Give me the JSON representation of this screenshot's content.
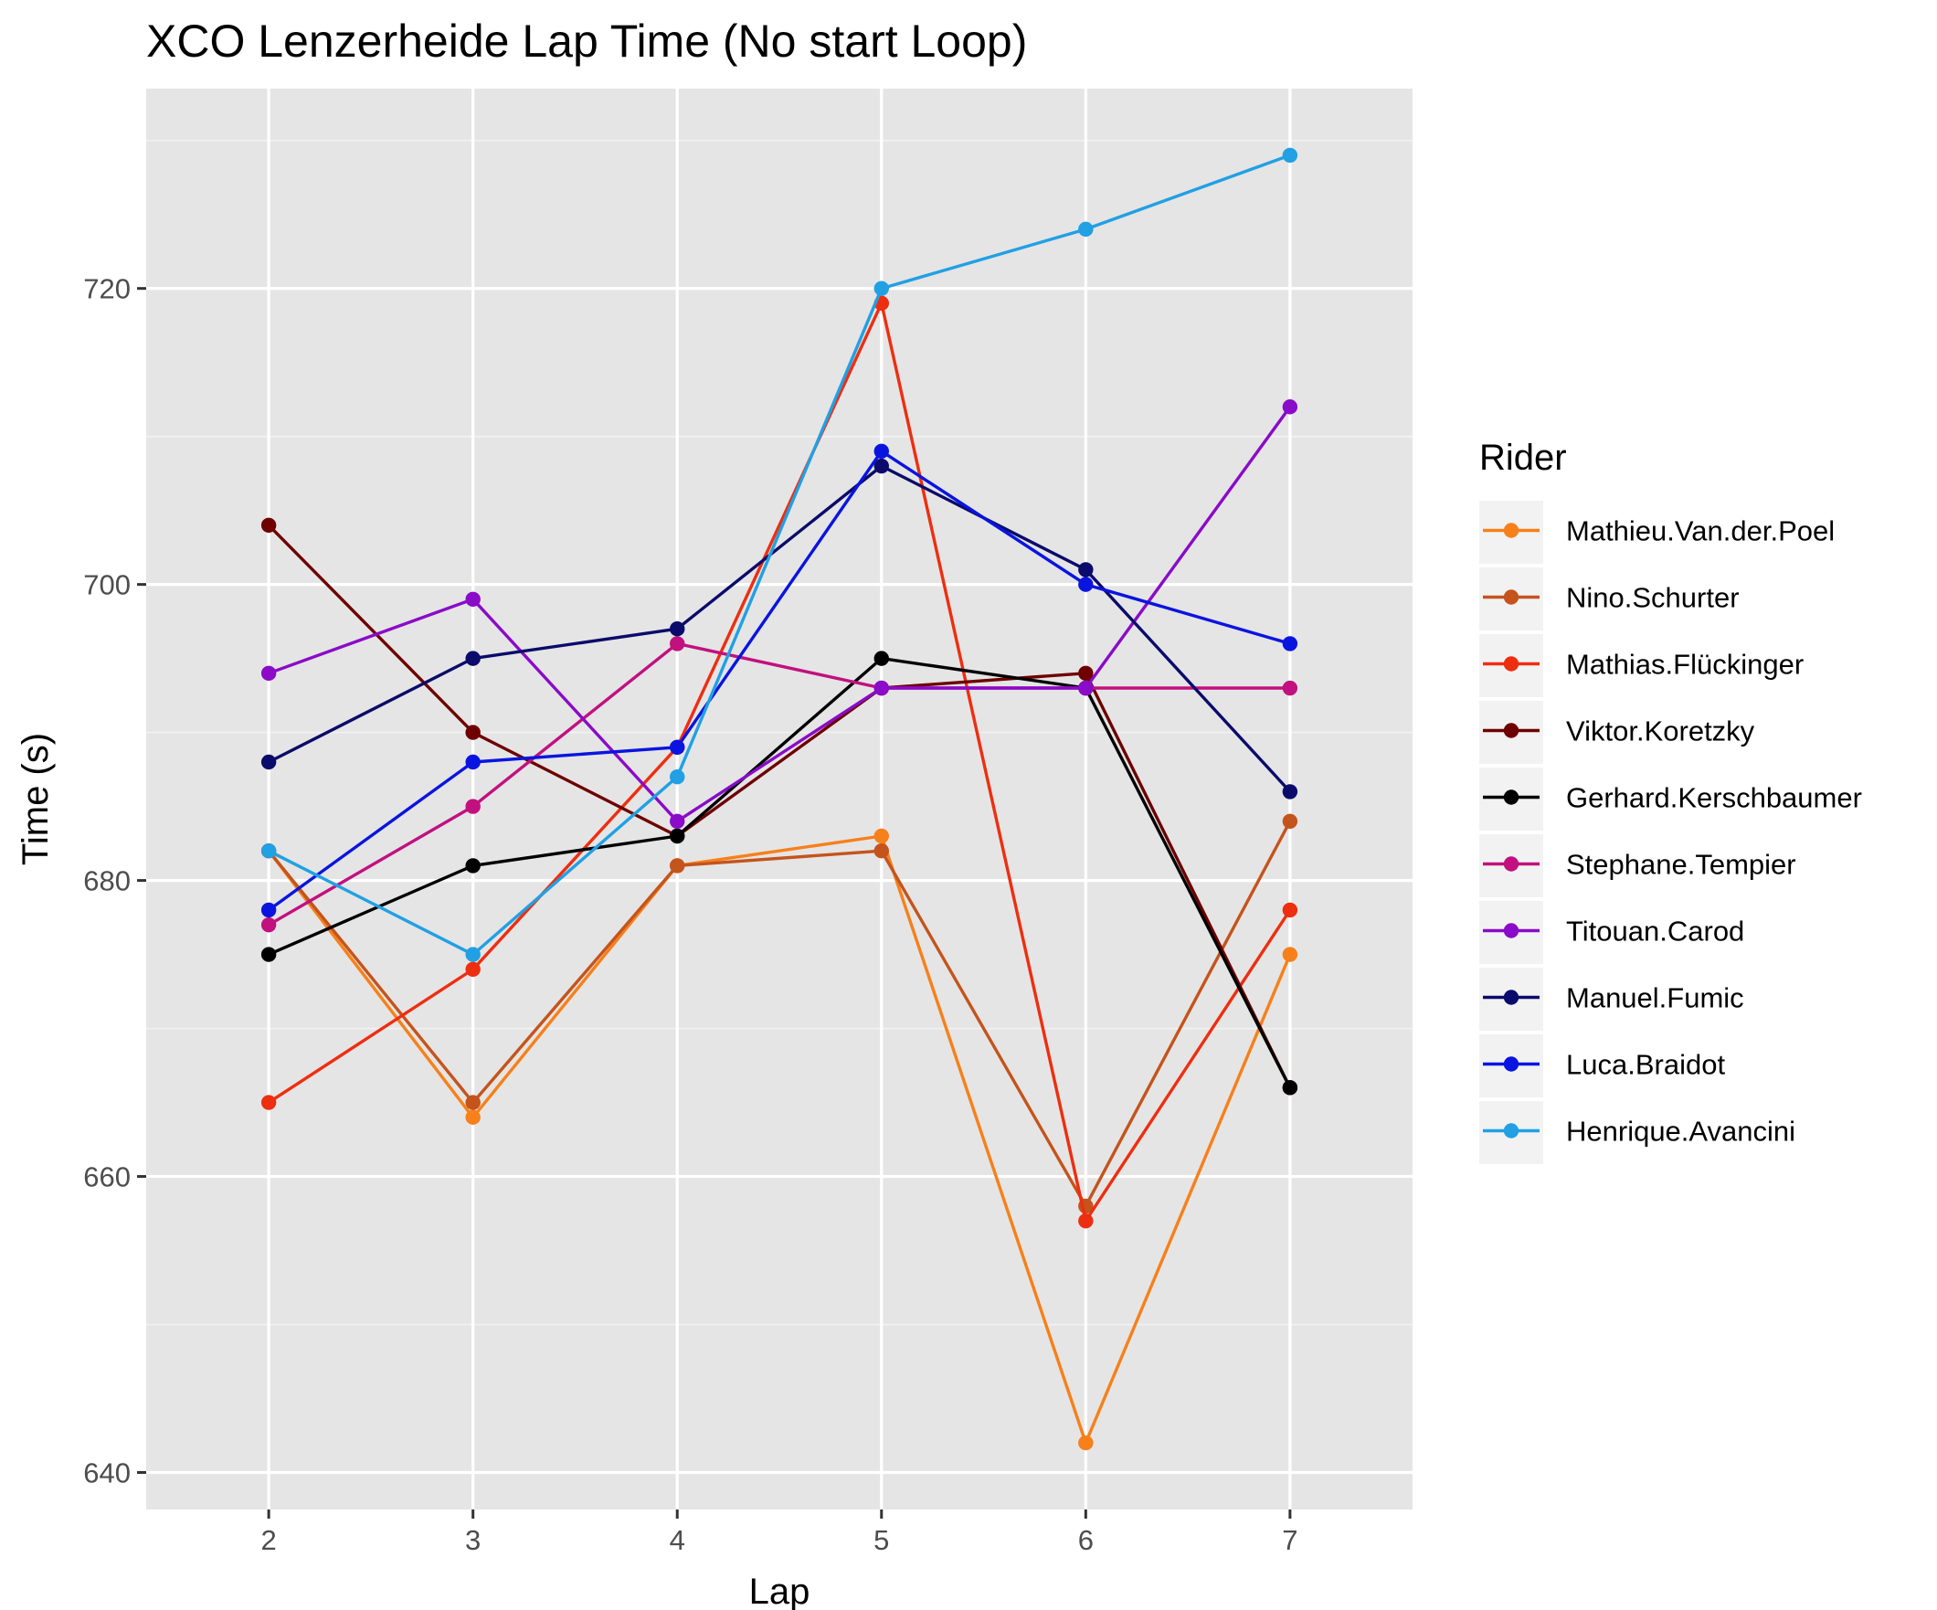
{
  "chart_data": {
    "type": "line",
    "title": "XCO Lenzerheide Lap Time (No start Loop)",
    "xlabel": "Lap",
    "ylabel": "Time (s)",
    "x": [
      2,
      3,
      4,
      5,
      6,
      7
    ],
    "x_ticks": [
      "2",
      "3",
      "4",
      "5",
      "6",
      "7"
    ],
    "xlim": [
      1.4,
      7.6
    ],
    "y_ticks": [
      640,
      660,
      680,
      700,
      720
    ],
    "y_tick_labels": [
      "640",
      "660",
      "680",
      "700",
      "720"
    ],
    "ylim": [
      637.5,
      733.5
    ],
    "grid": true,
    "legend": {
      "title": "Rider",
      "position": "right"
    },
    "series": [
      {
        "name": "Mathieu.Van.der.Poel",
        "color": "#F7801A",
        "values": [
          682,
          664,
          681,
          683,
          642,
          675
        ]
      },
      {
        "name": "Nino.Schurter",
        "color": "#C4541C",
        "values": [
          682,
          665,
          681,
          682,
          658,
          684
        ]
      },
      {
        "name": "Mathias.Flückinger",
        "color": "#EE2E10",
        "values": [
          665,
          674,
          689,
          719,
          657,
          678
        ]
      },
      {
        "name": "Viktor.Koretzky",
        "color": "#6E0000",
        "values": [
          704,
          690,
          683,
          693,
          694,
          666
        ]
      },
      {
        "name": "Gerhard.Kerschbaumer",
        "color": "#000000",
        "values": [
          675,
          681,
          683,
          695,
          693,
          666
        ]
      },
      {
        "name": "Stephane.Tempier",
        "color": "#C2107F",
        "values": [
          677,
          685,
          696,
          693,
          693,
          693
        ]
      },
      {
        "name": "Titouan.Carod",
        "color": "#8A0BC8",
        "values": [
          694,
          699,
          684,
          693,
          693,
          712
        ]
      },
      {
        "name": "Manuel.Fumic",
        "color": "#0B0B6B",
        "values": [
          688,
          695,
          697,
          708,
          701,
          686
        ]
      },
      {
        "name": "Luca.Braidot",
        "color": "#0A14E0",
        "values": [
          678,
          688,
          689,
          709,
          700,
          696
        ]
      },
      {
        "name": "Henrique.Avancini",
        "color": "#21A0E4",
        "values": [
          682,
          675,
          687,
          720,
          724,
          729
        ]
      }
    ]
  }
}
